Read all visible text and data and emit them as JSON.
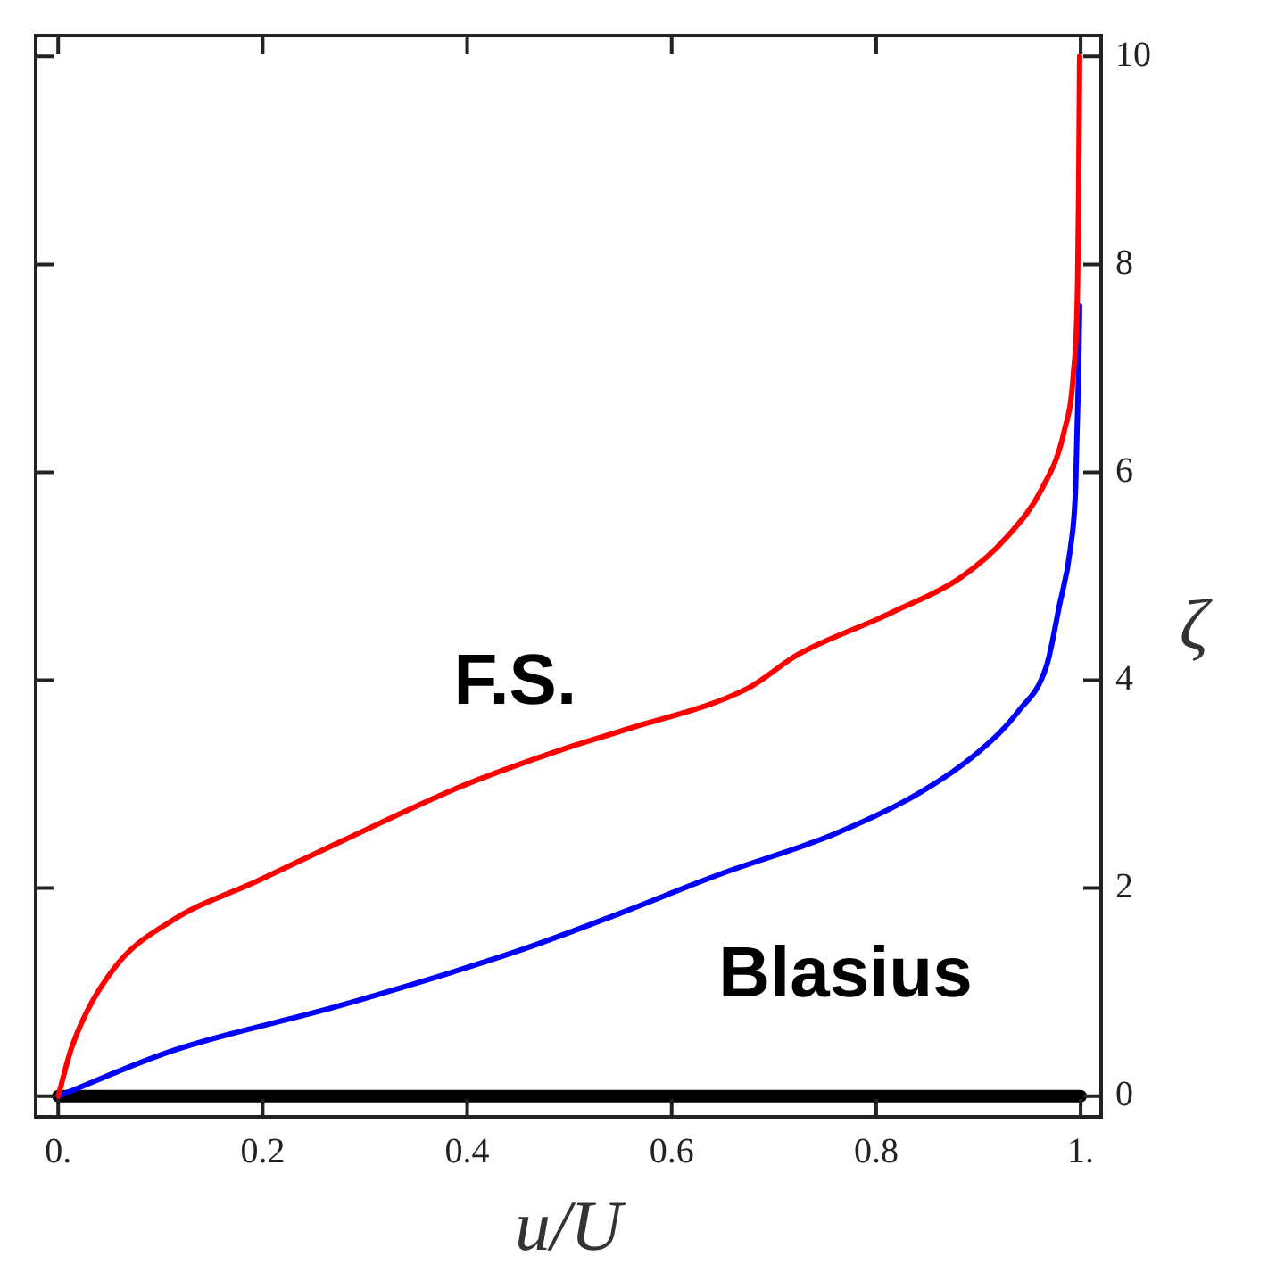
{
  "chart_data": {
    "type": "line",
    "xlabel": "u/U",
    "ylabel": "ζ",
    "xlim": [
      -0.022,
      1.02
    ],
    "ylim": [
      -0.2,
      10.2
    ],
    "xticks": [
      {
        "value": 0,
        "label": "0."
      },
      0.2,
      0.4,
      0.6,
      0.8,
      {
        "value": 1,
        "label": "1."
      }
    ],
    "yticks": [
      0,
      2,
      4,
      6,
      8,
      10
    ],
    "grid": false,
    "legend": false,
    "marker": "none",
    "line_style": "solid",
    "series": [
      {
        "name": "F.S.",
        "color": "#ff0000",
        "x": [
          0,
          0.014,
          0.054,
          0.11,
          0.195,
          0.279,
          0.392,
          0.504,
          0.55,
          0.674,
          0.724,
          0.804,
          0.815,
          0.883,
          0.928,
          0.962,
          0.984,
          0.993,
          0.997,
          0.998,
          0.999
        ],
        "values": [
          0,
          0.49,
          1.22,
          1.68,
          2.07,
          2.46,
          2.97,
          3.37,
          3.51,
          3.92,
          4.25,
          4.6,
          4.65,
          4.99,
          5.38,
          5.84,
          6.4,
          6.96,
          7.81,
          8.66,
          10
        ]
      },
      {
        "name": "Blasius",
        "color": "#0000ff",
        "x": [
          0,
          0.11,
          0.279,
          0.448,
          0.55,
          0.646,
          0.759,
          0.843,
          0.9,
          0.939,
          0.967,
          0.979,
          0.99,
          0.995,
          0.998,
          0.999
        ],
        "values": [
          0,
          0.43,
          0.88,
          1.39,
          1.76,
          2.13,
          2.52,
          2.92,
          3.31,
          3.7,
          4.15,
          4.71,
          5.27,
          5.84,
          6.96,
          7.6
        ]
      },
      {
        "color": "#000000",
        "x": [
          0,
          1
        ],
        "values": [
          0,
          0
        ]
      }
    ]
  }
}
